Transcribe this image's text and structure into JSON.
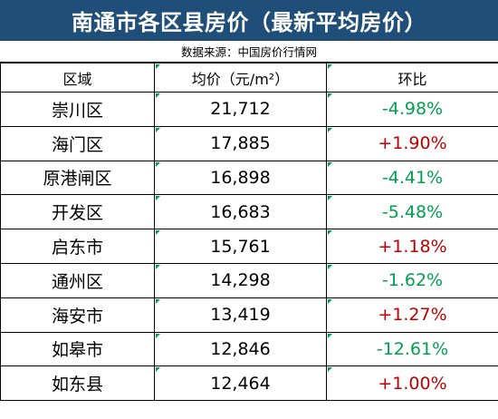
{
  "title": "南通市各区县房价（最新平均房价）",
  "source": "数据来源：中国房价行情网",
  "headers": [
    "区域",
    "均价（元/m²）",
    "环比"
  ],
  "colors": {
    "title_bg": "#1f4e79",
    "up": "#c00000",
    "down": "#00a050"
  },
  "rows": [
    {
      "district": "崇川区",
      "price": "21,712",
      "change": "-4.98%",
      "trend": "down"
    },
    {
      "district": "海门区",
      "price": "17,885",
      "change": "+1.90%",
      "trend": "up"
    },
    {
      "district": "原港闸区",
      "price": "16,898",
      "change": "-4.41%",
      "trend": "down"
    },
    {
      "district": "开发区",
      "price": "16,683",
      "change": "-5.48%",
      "trend": "down"
    },
    {
      "district": "启东市",
      "price": "15,761",
      "change": "+1.18%",
      "trend": "up"
    },
    {
      "district": "通州区",
      "price": "14,298",
      "change": "-1.62%",
      "trend": "down"
    },
    {
      "district": "海安市",
      "price": "13,419",
      "change": "+1.27%",
      "trend": "up"
    },
    {
      "district": "如皋市",
      "price": "12,846",
      "change": "-12.61%",
      "trend": "down"
    },
    {
      "district": "如东县",
      "price": "12,464",
      "change": "+1.00%",
      "trend": "up"
    }
  ]
}
